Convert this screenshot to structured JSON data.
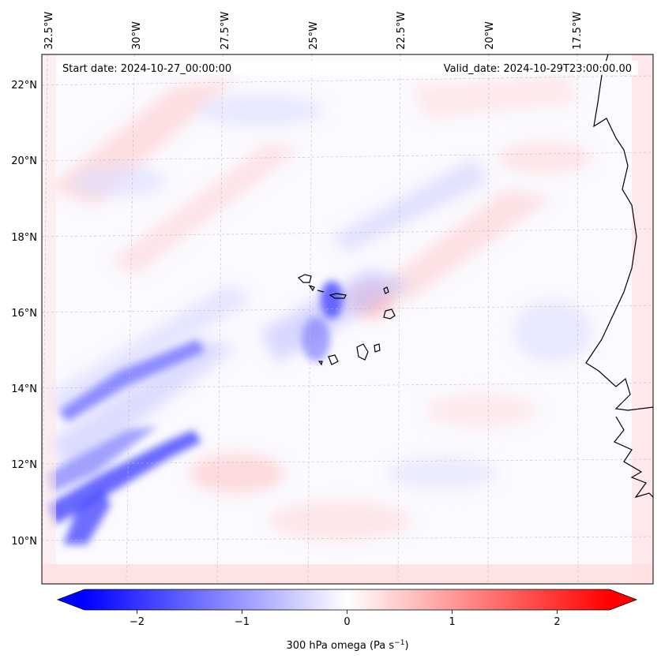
{
  "header": {
    "start_date": "Start date: 2024-10-27_00:00:00",
    "valid_date": "Valid_date: 2024-10-29T23:00:00.00"
  },
  "map": {
    "lon_labels": [
      "32.5°W",
      "30°W",
      "27.5°W",
      "25°W",
      "22.5°W",
      "20°W",
      "17.5°W"
    ],
    "lat_labels": [
      "22°N",
      "20°N",
      "18°N",
      "16°N",
      "14°N",
      "12°N",
      "10°N"
    ],
    "lat_range": [
      8.9,
      22.8
    ],
    "lon_range": [
      -33.0,
      -15.7
    ],
    "field_colors": {
      "negative": "#0000ff",
      "zero": "#ffffff",
      "positive": "#ff0000"
    }
  },
  "colorbar": {
    "label": "300 hPa omega (Pa s",
    "label_sup": "−1",
    "label_end": ")",
    "ticks": [
      "−2",
      "−1",
      "0",
      "1",
      "2"
    ],
    "tick_values": [
      -2,
      -1,
      0,
      1,
      2
    ],
    "range": [
      -2.5,
      2.5
    ],
    "extend": "both",
    "colormap": "bwr"
  }
}
